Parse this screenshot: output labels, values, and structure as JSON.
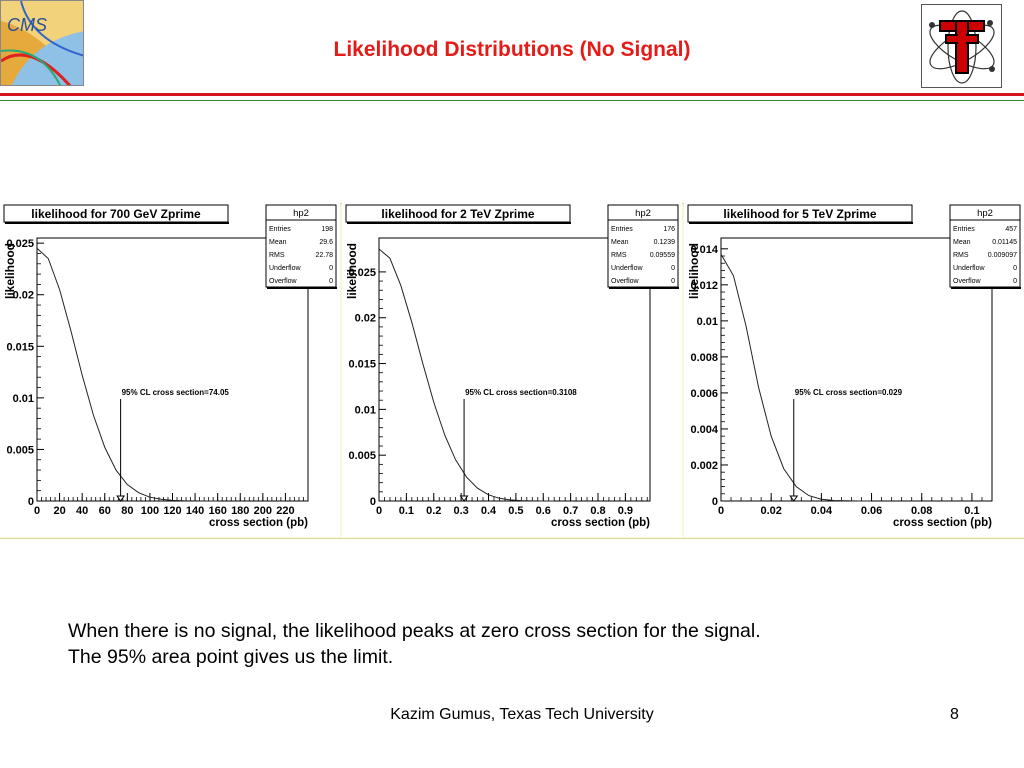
{
  "slide": {
    "title": "Likelihood Distributions (No Signal)",
    "logo_left_text": "CMS",
    "body_lines": [
      "When there is no signal, the likelihood peaks at zero cross section for the signal.",
      "The 95% area point gives us the limit."
    ],
    "footer_text": "Kazim Gumus,  Texas Tech University",
    "page_number": "8",
    "colors": {
      "title": "#e41b17",
      "rule_red": "#d8141e",
      "rule_green": "#2a8a2a",
      "panel_bg": "#f7f7d8"
    }
  },
  "chart_data": [
    {
      "type": "line",
      "title": "likelihood for 700 GeV Zprime",
      "xlabel": "cross section (pb)",
      "ylabel": "likelihood",
      "xlim": [
        0,
        240
      ],
      "ylim": [
        0,
        0.0255
      ],
      "xticks": [
        0,
        20,
        40,
        60,
        80,
        100,
        120,
        140,
        160,
        180,
        200,
        220
      ],
      "xtick_labels": [
        "0",
        "20",
        "40",
        "60",
        "80",
        "100",
        "120",
        "140",
        "160",
        "180",
        "200",
        "220"
      ],
      "yticks": [
        0,
        0.005,
        0.01,
        0.015,
        0.02,
        0.025
      ],
      "ytick_labels": [
        "0",
        "0.005",
        "0.01",
        "0.015",
        "0.02",
        "0.025"
      ],
      "x": [
        0,
        10,
        20,
        30,
        40,
        50,
        60,
        70,
        80,
        90,
        100,
        110,
        120,
        130,
        140,
        150,
        160
      ],
      "values": [
        0.0245,
        0.0235,
        0.0205,
        0.0165,
        0.0122,
        0.0083,
        0.0052,
        0.003,
        0.0016,
        0.0008,
        0.00037,
        0.00016,
        6e-05,
        2e-05,
        1e-05,
        0,
        0
      ],
      "limit_x": 74.05,
      "annotation": "95% CL cross section=74.05",
      "stats": {
        "name": "hp2",
        "rows": [
          {
            "label": "Entries",
            "value": "198"
          },
          {
            "label": "Mean",
            "value": "29.6"
          },
          {
            "label": "RMS",
            "value": "22.78"
          },
          {
            "label": "Underflow",
            "value": "0"
          },
          {
            "label": "Overflow",
            "value": "0"
          }
        ]
      }
    },
    {
      "type": "line",
      "title": "likelihood for 2 TeV Zprime",
      "xlabel": "cross section (pb)",
      "ylabel": "likelihood",
      "xlim": [
        0,
        0.99
      ],
      "ylim": [
        0,
        0.0287
      ],
      "xticks": [
        0,
        0.1,
        0.2,
        0.3,
        0.4,
        0.5,
        0.6,
        0.7,
        0.8,
        0.9
      ],
      "xtick_labels": [
        "0",
        "0.1",
        "0.2",
        "0.3",
        "0.4",
        "0.5",
        "0.6",
        "0.7",
        "0.8",
        "0.9"
      ],
      "yticks": [
        0,
        0.005,
        0.01,
        0.015,
        0.02,
        0.025
      ],
      "ytick_labels": [
        "0",
        "0.005",
        "0.01",
        "0.015",
        "0.02",
        "0.025"
      ],
      "x": [
        0,
        0.04,
        0.08,
        0.12,
        0.16,
        0.2,
        0.24,
        0.28,
        0.32,
        0.36,
        0.4,
        0.44,
        0.48,
        0.52,
        0.56,
        0.6,
        0.64
      ],
      "values": [
        0.0275,
        0.0265,
        0.0235,
        0.0195,
        0.015,
        0.0108,
        0.0072,
        0.0045,
        0.0026,
        0.0014,
        0.00068,
        0.0003,
        0.00012,
        4e-05,
        1e-05,
        0,
        0
      ],
      "limit_x": 0.3108,
      "annotation": "95% CL cross section=0.3108",
      "stats": {
        "name": "hp2",
        "rows": [
          {
            "label": "Entries",
            "value": "176"
          },
          {
            "label": "Mean",
            "value": "0.1239"
          },
          {
            "label": "RMS",
            "value": "0.09559"
          },
          {
            "label": "Underflow",
            "value": "0"
          },
          {
            "label": "Overflow",
            "value": "0"
          }
        ]
      }
    },
    {
      "type": "line",
      "title": "likelihood for 5 TeV Zprime",
      "xlabel": "cross section (pb)",
      "ylabel": "likelihood",
      "xlim": [
        0,
        0.108
      ],
      "ylim": [
        0,
        0.0146
      ],
      "xticks": [
        0,
        0.02,
        0.04,
        0.06,
        0.08,
        0.1
      ],
      "xtick_labels": [
        "0",
        "0.02",
        "0.04",
        "0.06",
        "0.08",
        "0.1"
      ],
      "yticks": [
        0,
        0.002,
        0.004,
        0.006,
        0.008,
        0.01,
        0.012,
        0.014
      ],
      "ytick_labels": [
        "0",
        "0.002",
        "0.004",
        "0.006",
        "0.008",
        "0.01",
        "0.012",
        "0.014"
      ],
      "x": [
        0,
        0.005,
        0.01,
        0.015,
        0.02,
        0.025,
        0.03,
        0.035,
        0.04,
        0.045,
        0.05,
        0.055,
        0.06
      ],
      "values": [
        0.0137,
        0.0125,
        0.0097,
        0.0063,
        0.0036,
        0.0018,
        0.0008,
        0.0003,
        0.0001,
        3e-05,
        1e-05,
        0,
        0
      ],
      "limit_x": 0.029,
      "annotation": "95% CL cross section=0.029",
      "stats": {
        "name": "hp2",
        "rows": [
          {
            "label": "Entries",
            "value": "457"
          },
          {
            "label": "Mean",
            "value": "0.01145"
          },
          {
            "label": "RMS",
            "value": "0.009097"
          },
          {
            "label": "Underflow",
            "value": "0"
          },
          {
            "label": "Overflow",
            "value": "0"
          }
        ]
      }
    }
  ]
}
